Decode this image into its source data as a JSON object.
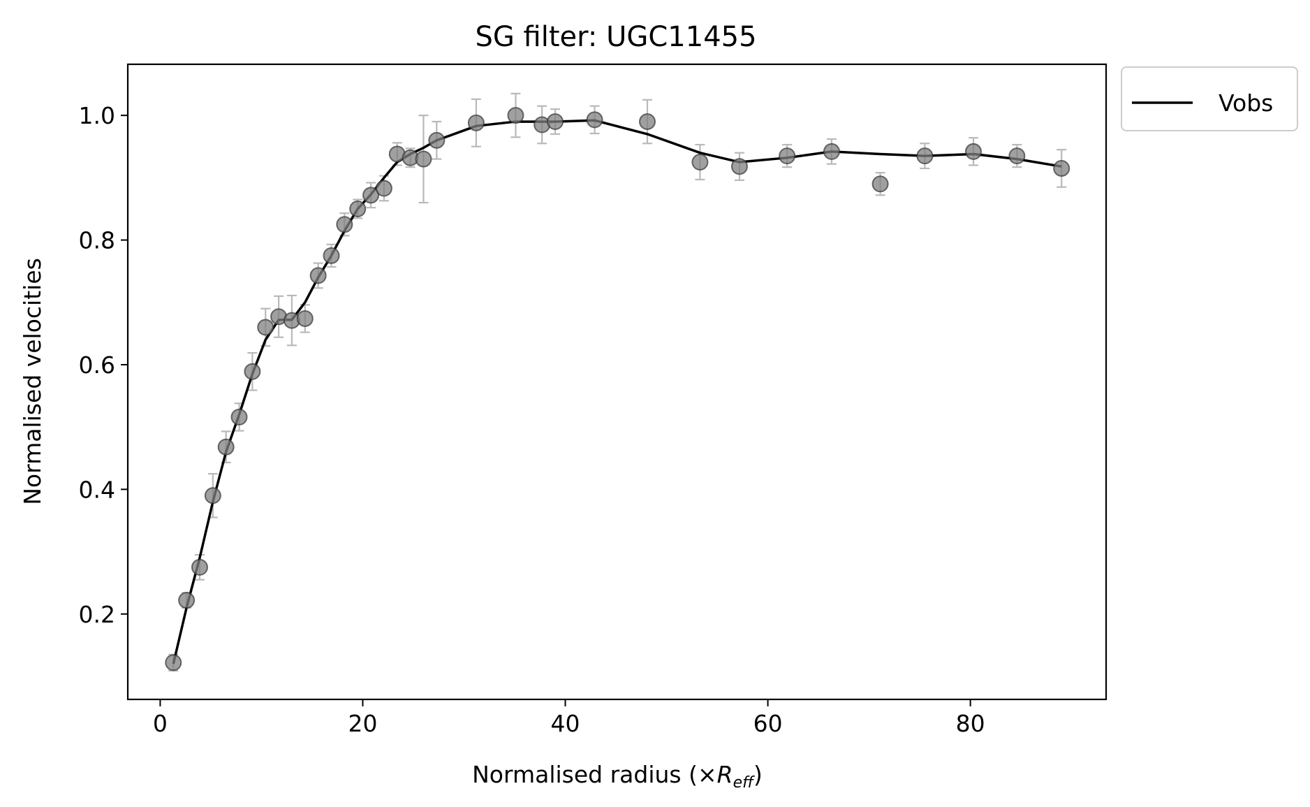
{
  "chart_data": {
    "type": "scatter",
    "title": "SG filter: UGC11455",
    "xlabel_prefix": "Normalised radius (×",
    "xlabel_var": "R",
    "xlabel_sub": "eff",
    "xlabel_suffix": ")",
    "ylabel": "Normalised velocities",
    "xlim": [
      -3.2,
      93.4
    ],
    "ylim": [
      0.063,
      1.082
    ],
    "xticks": [
      0,
      20,
      40,
      60,
      80
    ],
    "xtick_labels": [
      "0",
      "20",
      "40",
      "60",
      "80"
    ],
    "yticks": [
      0.2,
      0.4,
      0.6,
      0.8,
      1.0
    ],
    "ytick_labels": [
      "0.2",
      "0.4",
      "0.6",
      "0.8",
      "1.0"
    ],
    "grid": false,
    "legend_position": "outside-top-right",
    "series": [
      {
        "name": "Vobs",
        "kind": "line",
        "color": "#000000",
        "x": [
          1.3,
          2.6,
          3.9,
          5.2,
          6.5,
          7.8,
          9.1,
          10.4,
          11.7,
          13.0,
          14.3,
          15.6,
          16.9,
          18.2,
          19.5,
          20.8,
          22.1,
          23.4,
          24.7,
          26.0,
          27.3,
          31.2,
          35.1,
          37.7,
          39.0,
          42.9,
          48.1,
          53.3,
          57.2,
          61.9,
          66.3,
          71.1,
          75.5,
          80.3,
          84.6,
          89.0
        ],
        "y": [
          0.12,
          0.21,
          0.29,
          0.38,
          0.46,
          0.52,
          0.585,
          0.64,
          0.672,
          0.672,
          0.7,
          0.74,
          0.775,
          0.815,
          0.85,
          0.873,
          0.9,
          0.925,
          0.938,
          0.948,
          0.96,
          0.983,
          0.99,
          0.99,
          0.99,
          0.992,
          0.97,
          0.94,
          0.925,
          0.932,
          0.942,
          0.938,
          0.935,
          0.938,
          0.93,
          0.918
        ]
      },
      {
        "name": "",
        "kind": "errorbar",
        "color": "#808080",
        "x": [
          1.3,
          2.6,
          3.9,
          5.2,
          6.5,
          7.8,
          9.1,
          10.4,
          11.7,
          13.0,
          14.3,
          15.6,
          16.9,
          18.2,
          19.5,
          20.8,
          22.1,
          23.4,
          24.7,
          26.0,
          27.3,
          31.2,
          35.1,
          37.7,
          39.0,
          42.9,
          48.1,
          53.3,
          57.2,
          61.9,
          66.3,
          71.1,
          75.5,
          80.3,
          84.6,
          89.0
        ],
        "y": [
          0.122,
          0.222,
          0.275,
          0.39,
          0.468,
          0.516,
          0.589,
          0.66,
          0.677,
          0.671,
          0.674,
          0.743,
          0.775,
          0.825,
          0.85,
          0.872,
          0.883,
          0.938,
          0.932,
          0.93,
          0.96,
          0.988,
          1.0,
          0.985,
          0.99,
          0.993,
          0.99,
          0.925,
          0.918,
          0.935,
          0.942,
          0.89,
          0.935,
          0.942,
          0.935,
          0.915
        ],
        "err": [
          0.013,
          0.012,
          0.02,
          0.035,
          0.025,
          0.022,
          0.03,
          0.03,
          0.033,
          0.04,
          0.022,
          0.02,
          0.018,
          0.018,
          0.015,
          0.02,
          0.02,
          0.018,
          0.015,
          0.07,
          0.03,
          0.038,
          0.035,
          0.03,
          0.02,
          0.022,
          0.035,
          0.028,
          0.022,
          0.018,
          0.02,
          0.018,
          0.02,
          0.022,
          0.018,
          0.03
        ]
      }
    ]
  }
}
